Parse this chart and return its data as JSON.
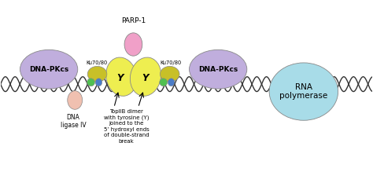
{
  "bg_color": "#ffffff",
  "dna_color": "#333333",
  "dna_pkcs_color": "#c0aedd",
  "ku_color": "#d4c830",
  "green_color": "#50c050",
  "blue_color": "#4a7cc7",
  "topiib_color": "#eeee50",
  "parp_color": "#f0a0c8",
  "dna_ligase_color": "#f0c0b0",
  "rna_color": "#a8dce8",
  "label_dnapkcs": "DNA-PKcs",
  "label_ku": "Ku70/80",
  "label_parp": "PARP-1",
  "label_dnaligase": "DNA\nligase IV",
  "label_topiib": "TopIIB dimer\nwith tyrosine (Y)\njoined to the\n5’ hydroxyl ends\nof double-strand\nbreak",
  "label_rna": "RNA\npolymerase",
  "label_y": "Y",
  "border_color": "#888888"
}
